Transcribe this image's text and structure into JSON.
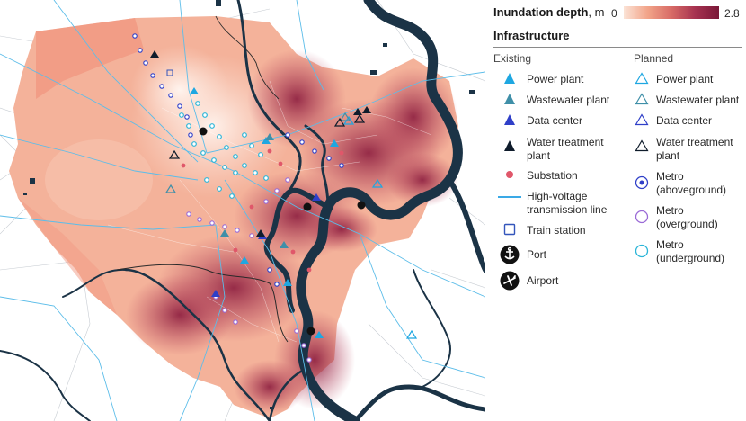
{
  "legend": {
    "depth_title": "Inundation depth",
    "depth_unit": ", m",
    "depth_min": "0",
    "depth_max": "2.8",
    "depth_gradient": [
      "#fbe3d6",
      "#f2a489",
      "#d86b66",
      "#a63250",
      "#7a1838"
    ],
    "infrastructure_title": "Infrastructure",
    "existing_heading": "Existing",
    "planned_heading": "Planned",
    "existing_items": [
      {
        "label": "Power plant",
        "icon": "power-plant-icon",
        "color": "#1ea7e1"
      },
      {
        "label": "Wastewater plant",
        "icon": "wastewater-plant-icon",
        "color": "#3f8fa8"
      },
      {
        "label": "Data center",
        "icon": "data-center-icon",
        "color": "#2f3fc8"
      },
      {
        "label": "Water treatment",
        "label2": "plant",
        "icon": "water-treatment-plant-icon",
        "color": "#0f1c2b"
      },
      {
        "label": "Substation",
        "icon": "substation-icon",
        "color": "#e0576a"
      },
      {
        "label": "High-voltage",
        "label2": "transmission line",
        "icon": "transmission-line-icon",
        "color": "#3aa9e6"
      },
      {
        "label": "Train station",
        "icon": "train-station-icon",
        "color": "#3355bb"
      },
      {
        "label": "Port",
        "icon": "port-icon",
        "color": "#111111"
      },
      {
        "label": "Airport",
        "icon": "airport-icon",
        "color": "#111111"
      }
    ],
    "planned_items": [
      {
        "label": "Power plant",
        "icon": "planned-power-plant-icon",
        "color": "#1ea7e1"
      },
      {
        "label": "Wastewater plant",
        "icon": "planned-wastewater-plant-icon",
        "color": "#3f8fa8"
      },
      {
        "label": "Data center",
        "icon": "planned-data-center-icon",
        "color": "#2f3fc8"
      },
      {
        "label": "Water treatment",
        "label2": "plant",
        "icon": "planned-water-treatment-plant-icon",
        "color": "#0f1c2b"
      },
      {
        "label": "Metro",
        "label2": "(aboveground)",
        "icon": "metro-aboveground-icon",
        "color": "#2f3fc8"
      },
      {
        "label": "Metro",
        "label2": "(overground)",
        "icon": "metro-overground-icon",
        "color": "#9a6ad6"
      },
      {
        "label": "Metro",
        "label2": "(underground)",
        "icon": "metro-underground-icon",
        "color": "#2bb5d8"
      }
    ]
  },
  "map": {
    "river_color": "#1b3346",
    "land_color": "#ffffff",
    "road_color": "#9aa4b0",
    "transmission_color": "#5cbde9"
  }
}
